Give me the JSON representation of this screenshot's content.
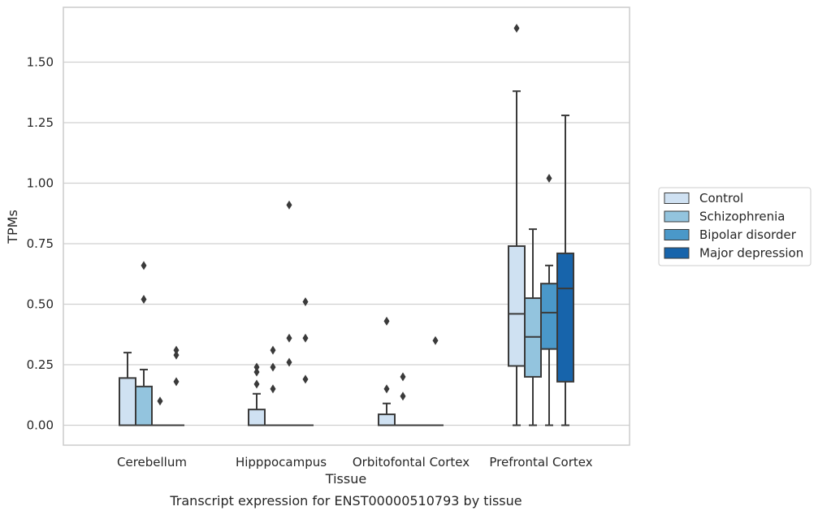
{
  "caption": "Transcript expression for ENST00000510793 by tissue",
  "colors": {
    "Control": "#cfe1f2",
    "Schizophrenia": "#93c4de",
    "Bipolar disorder": "#4a98c9",
    "Major depression": "#1764ab",
    "edge": "#3a3a3a",
    "grid": "#d0d0d0",
    "frame": "#cccccc"
  },
  "chart_data": {
    "type": "box",
    "xlabel": "Tissue",
    "ylabel": "TPMs",
    "ylim": [
      -0.08,
      1.72
    ],
    "yticks": [
      "0.00",
      "0.25",
      "0.50",
      "0.75",
      "1.00",
      "1.25",
      "1.50"
    ],
    "categories": [
      "Cerebellum",
      "Hipppocampus",
      "Orbitofontal Cortex",
      "Prefrontal Cortex"
    ],
    "legend": {
      "position": "right",
      "entries": [
        "Control",
        "Schizophrenia",
        "Bipolar disorder",
        "Major depression"
      ]
    },
    "grid": "horizontal",
    "series": [
      {
        "name": "Control",
        "boxes": [
          {
            "whislo": 0,
            "q1": 0,
            "med": 0,
            "q3": 0.195,
            "whishi": 0.3,
            "fliers": []
          },
          {
            "whislo": 0,
            "q1": 0,
            "med": 0,
            "q3": 0.065,
            "whishi": 0.13,
            "fliers": [
              0.17,
              0.22,
              0.24
            ]
          },
          {
            "whislo": 0,
            "q1": 0,
            "med": 0,
            "q3": 0.045,
            "whishi": 0.09,
            "fliers": [
              0.15,
              0.43
            ]
          },
          {
            "whislo": 0,
            "q1": 0.245,
            "med": 0.46,
            "q3": 0.74,
            "whishi": 1.38,
            "fliers": [
              1.64
            ]
          }
        ]
      },
      {
        "name": "Schizophrenia",
        "boxes": [
          {
            "whislo": 0,
            "q1": 0,
            "med": 0,
            "q3": 0.16,
            "whishi": 0.23,
            "fliers": [
              0.52,
              0.66
            ]
          },
          {
            "whislo": 0,
            "q1": 0,
            "med": 0,
            "q3": 0,
            "whishi": 0,
            "fliers": [
              0.15,
              0.24,
              0.31
            ]
          },
          {
            "whislo": 0,
            "q1": 0,
            "med": 0,
            "q3": 0,
            "whishi": 0,
            "fliers": [
              0.12,
              0.2
            ]
          },
          {
            "whislo": 0,
            "q1": 0.2,
            "med": 0.365,
            "q3": 0.525,
            "whishi": 0.81,
            "fliers": []
          }
        ]
      },
      {
        "name": "Bipolar disorder",
        "boxes": [
          {
            "whislo": 0,
            "q1": 0,
            "med": 0,
            "q3": 0,
            "whishi": 0,
            "fliers": [
              0.1
            ]
          },
          {
            "whislo": 0,
            "q1": 0,
            "med": 0,
            "q3": 0,
            "whishi": 0,
            "fliers": [
              0.26,
              0.36,
              0.91
            ]
          },
          {
            "whislo": 0,
            "q1": 0,
            "med": 0,
            "q3": 0,
            "whishi": 0,
            "fliers": []
          },
          {
            "whislo": 0,
            "q1": 0.315,
            "med": 0.465,
            "q3": 0.585,
            "whishi": 0.66,
            "fliers": [
              1.02
            ]
          }
        ]
      },
      {
        "name": "Major depression",
        "boxes": [
          {
            "whislo": 0,
            "q1": 0,
            "med": 0,
            "q3": 0,
            "whishi": 0,
            "fliers": [
              0.18,
              0.29,
              0.31
            ]
          },
          {
            "whislo": 0,
            "q1": 0,
            "med": 0,
            "q3": 0,
            "whishi": 0,
            "fliers": [
              0.19,
              0.36,
              0.51
            ]
          },
          {
            "whislo": 0,
            "q1": 0,
            "med": 0,
            "q3": 0,
            "whishi": 0,
            "fliers": [
              0.35
            ]
          },
          {
            "whislo": 0,
            "q1": 0.18,
            "med": 0.565,
            "q3": 0.71,
            "whishi": 1.28,
            "fliers": []
          }
        ]
      }
    ]
  }
}
